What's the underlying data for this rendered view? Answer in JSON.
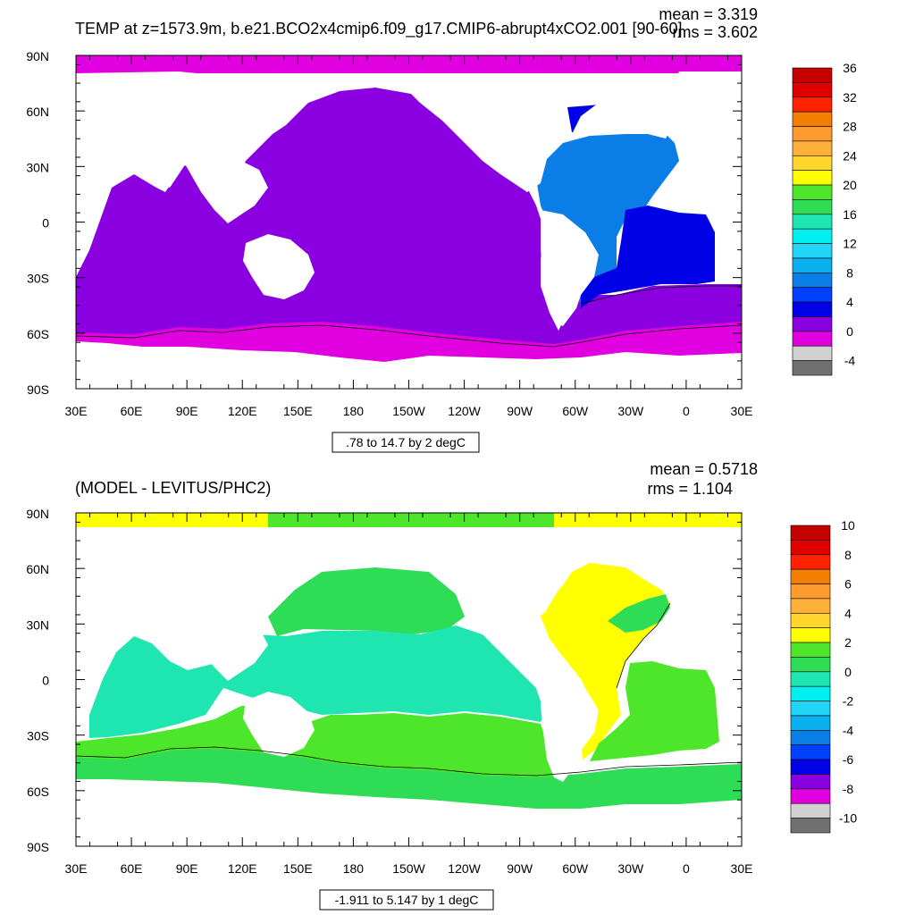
{
  "top": {
    "title": "TEMP at z=1573.9m, b.e21.BCO2x4cmip6.f09_g17.CMIP6-abrupt4xCO2.001 [90-60]",
    "mean_text": "mean = 3.319",
    "rms_text": "rms = 3.602",
    "range_label": ".78 to 14.7 by 2 degC",
    "colorbar_labels": [
      "36",
      "32",
      "28",
      "24",
      "20",
      "16",
      "12",
      "8",
      "4",
      "0",
      "-4"
    ],
    "colorbar_colors": [
      "#c40000",
      "#e00000",
      "#ff2200",
      "#f27f00",
      "#ff9a2e",
      "#ffb03a",
      "#ffd52e",
      "#ffff00",
      "#4ee62a",
      "#2edc56",
      "#1fe6b0",
      "#00f0f0",
      "#22d4f5",
      "#0ab0f0",
      "#0a7ee6",
      "#0040ff",
      "#0000e6",
      "#8a00e0",
      "#e000e0",
      "#d0d0d0",
      "#707070"
    ]
  },
  "bottom": {
    "title": "(MODEL - LEVITUS/PHC2)",
    "mean_text": "mean = 0.5718",
    "rms_text": "rms = 1.104",
    "range_label": "-1.911 to 5.147 by 1 degC",
    "colorbar_labels": [
      "10",
      "8",
      "6",
      "4",
      "2",
      "0",
      "-2",
      "-4",
      "-6",
      "-8",
      "-10"
    ],
    "colorbar_colors": [
      "#c40000",
      "#e00000",
      "#ff2200",
      "#f27f00",
      "#ff9a2e",
      "#ffb03a",
      "#ffd52e",
      "#ffff00",
      "#4ee62a",
      "#2edc56",
      "#1fe6b0",
      "#00f0f0",
      "#22d4f5",
      "#0ab0f0",
      "#0a7ee6",
      "#0040ff",
      "#0000e6",
      "#8a00e0",
      "#e000e0",
      "#d0d0d0",
      "#707070"
    ]
  },
  "axes": {
    "lat_labels": [
      "90N",
      "60N",
      "30N",
      "0",
      "30S",
      "60S",
      "90S"
    ],
    "lon_labels": [
      "30E",
      "60E",
      "90E",
      "120E",
      "150E",
      "180",
      "150W",
      "120W",
      "90W",
      "60W",
      "30W",
      "0",
      "30E"
    ]
  },
  "colors": {
    "purple": "#8a00e0",
    "magenta": "#e000e0",
    "blue": "#0000e6",
    "midblue": "#0a7ee6",
    "green": "#4ee62a",
    "green2": "#2edc56",
    "turquoise": "#1fe6b0",
    "yellow": "#ffff00",
    "cyan": "#22d4f5",
    "land": "#ffffff"
  }
}
